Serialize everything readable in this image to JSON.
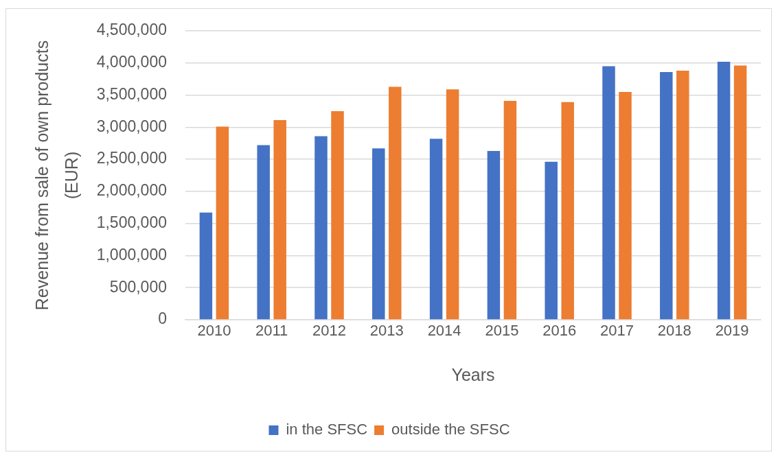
{
  "chart_data": {
    "type": "bar",
    "xlabel": "Years",
    "ylabel": "Revenue from sale of own products (EUR)",
    "categories": [
      "2010",
      "2011",
      "2012",
      "2013",
      "2014",
      "2015",
      "2016",
      "2017",
      "2018",
      "2019"
    ],
    "series": [
      {
        "name": "in the SFSC",
        "color": "#4472c4",
        "values": [
          1670000,
          2720000,
          2860000,
          2670000,
          2820000,
          2630000,
          2460000,
          3950000,
          3860000,
          4020000
        ]
      },
      {
        "name": "outside the SFSC",
        "color": "#ed7d31",
        "values": [
          3010000,
          3110000,
          3250000,
          3630000,
          3590000,
          3410000,
          3390000,
          3550000,
          3880000,
          3960000
        ]
      }
    ],
    "ylim": [
      0,
      4500000
    ],
    "yticks": [
      0,
      {
        "value": 500000,
        "label": "500,000"
      },
      {
        "value": 1000000,
        "label": "1,000,000"
      },
      {
        "value": 1500000,
        "label": "1,500,000"
      },
      {
        "value": 2000000,
        "label": "2,000,000"
      },
      {
        "value": 2500000,
        "label": "2,500,000"
      },
      {
        "value": 3000000,
        "label": "3,000,000"
      },
      {
        "value": 3500000,
        "label": "3,500,000"
      },
      {
        "value": 4000000,
        "label": "4,000,000"
      },
      {
        "value": 4500000,
        "label": "4,500,000"
      }
    ],
    "grid": "y",
    "legend": "bottom"
  }
}
